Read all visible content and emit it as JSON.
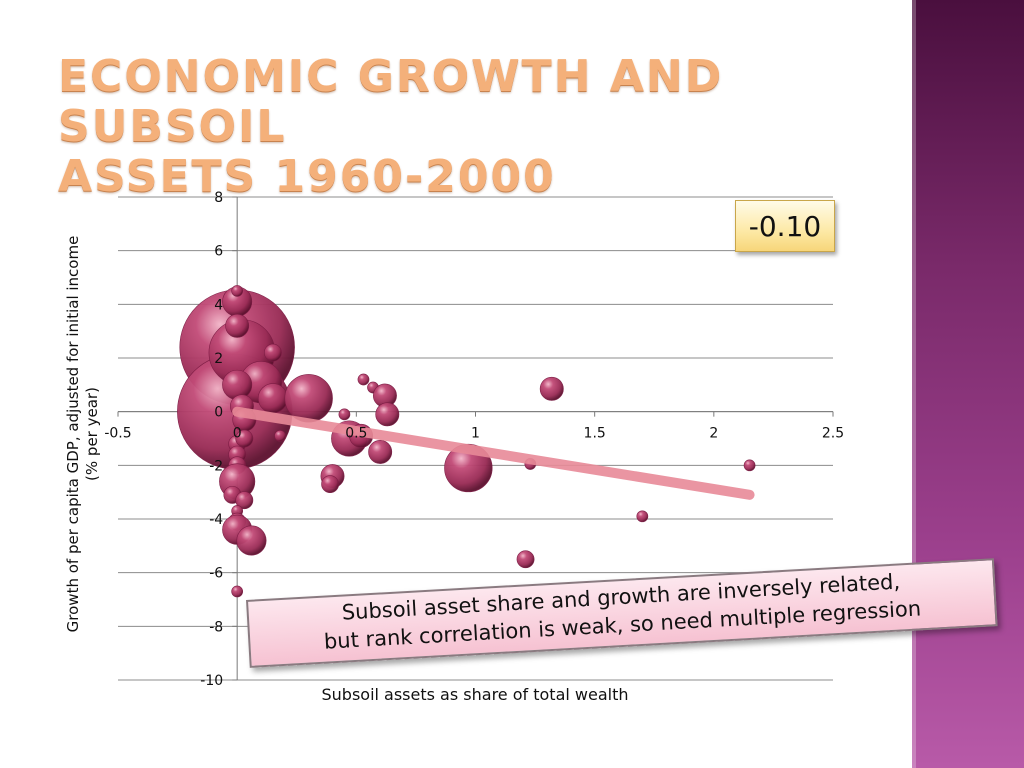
{
  "slide": {
    "title_line1": "Economic growth and subsoil",
    "title_line2": "assets 1960-2000",
    "correlation_label": "-0.10",
    "callout_line1": "Subsoil asset share and growth are inversely related,",
    "callout_line2": "but rank correlation is weak, so need multiple regression"
  },
  "colors": {
    "bubble": "#a83a62",
    "bubble_highlight": "#e08aa8",
    "bubble_dark": "#6a1638",
    "trendline": "#e88a98",
    "title": "#f4b07a",
    "band": "#7a2a6a"
  },
  "chart_data": {
    "type": "scatter",
    "subtype": "bubble",
    "xlabel": "Subsoil assets as share of total wealth",
    "ylabel": "Growth of per capita GDP, adjusted for initial income (% per year)",
    "xlim": [
      -0.5,
      2.5
    ],
    "ylim": [
      -10,
      8
    ],
    "x_ticks": [
      -0.5,
      0,
      0.5,
      1,
      1.5,
      2,
      2.5
    ],
    "x_tick_labels": [
      "-0.5",
      "0",
      "0.5",
      "1",
      "1.5",
      "2",
      "2.5"
    ],
    "y_ticks": [
      8,
      6,
      4,
      2,
      0,
      -2,
      -4,
      -6,
      -8,
      -10
    ],
    "y_tick_labels": [
      "8",
      "6",
      "4",
      "2",
      "0",
      "-2",
      "-4",
      "-6",
      "-8",
      "-10"
    ],
    "grid": true,
    "trendline": {
      "x": [
        0.0,
        2.15
      ],
      "y": [
        0.0,
        -3.1
      ]
    },
    "points": [
      {
        "x": 0.0,
        "y": 2.4,
        "size": 18
      },
      {
        "x": -0.01,
        "y": 0.0,
        "size": 18
      },
      {
        "x": 0.02,
        "y": 2.2,
        "size": 10
      },
      {
        "x": 0.0,
        "y": 4.1,
        "size": 4
      },
      {
        "x": 0.0,
        "y": 4.5,
        "size": 1
      },
      {
        "x": 0.0,
        "y": 3.2,
        "size": 3
      },
      {
        "x": 0.1,
        "y": 1.1,
        "size": 6
      },
      {
        "x": 0.15,
        "y": 0.5,
        "size": 4
      },
      {
        "x": 0.3,
        "y": 0.5,
        "size": 7
      },
      {
        "x": 0.0,
        "y": 1.0,
        "size": 4
      },
      {
        "x": 0.02,
        "y": 0.2,
        "size": 3
      },
      {
        "x": 0.03,
        "y": -0.3,
        "size": 3
      },
      {
        "x": 0.15,
        "y": 2.2,
        "size": 2
      },
      {
        "x": 0.18,
        "y": -0.9,
        "size": 1
      },
      {
        "x": 0.0,
        "y": -1.2,
        "size": 2
      },
      {
        "x": 0.03,
        "y": -1.0,
        "size": 2
      },
      {
        "x": 0.0,
        "y": -1.6,
        "size": 2
      },
      {
        "x": 0.0,
        "y": -2.0,
        "size": 2
      },
      {
        "x": 0.0,
        "y": -2.6,
        "size": 5
      },
      {
        "x": -0.02,
        "y": -3.1,
        "size": 2
      },
      {
        "x": 0.03,
        "y": -3.3,
        "size": 2
      },
      {
        "x": 0.0,
        "y": -3.7,
        "size": 1
      },
      {
        "x": 0.0,
        "y": -4.1,
        "size": 2
      },
      {
        "x": 0.0,
        "y": -4.4,
        "size": 4
      },
      {
        "x": 0.06,
        "y": -4.8,
        "size": 4
      },
      {
        "x": 0.0,
        "y": -6.7,
        "size": 1
      },
      {
        "x": 0.47,
        "y": -1.0,
        "size": 5
      },
      {
        "x": 0.52,
        "y": -0.9,
        "size": 3
      },
      {
        "x": 0.45,
        "y": -0.1,
        "size": 1
      },
      {
        "x": 0.53,
        "y": 1.2,
        "size": 1
      },
      {
        "x": 0.57,
        "y": 0.9,
        "size": 1
      },
      {
        "x": 0.62,
        "y": 0.6,
        "size": 3
      },
      {
        "x": 0.63,
        "y": -0.1,
        "size": 3
      },
      {
        "x": 0.6,
        "y": -1.5,
        "size": 3
      },
      {
        "x": 0.4,
        "y": -2.4,
        "size": 3
      },
      {
        "x": 0.39,
        "y": -2.7,
        "size": 2
      },
      {
        "x": 0.97,
        "y": -2.1,
        "size": 7
      },
      {
        "x": 1.23,
        "y": -1.95,
        "size": 1
      },
      {
        "x": 1.32,
        "y": 0.85,
        "size": 3
      },
      {
        "x": 1.21,
        "y": -5.5,
        "size": 2
      },
      {
        "x": 1.7,
        "y": -3.9,
        "size": 1
      },
      {
        "x": 2.15,
        "y": -2.0,
        "size": 1
      }
    ]
  }
}
